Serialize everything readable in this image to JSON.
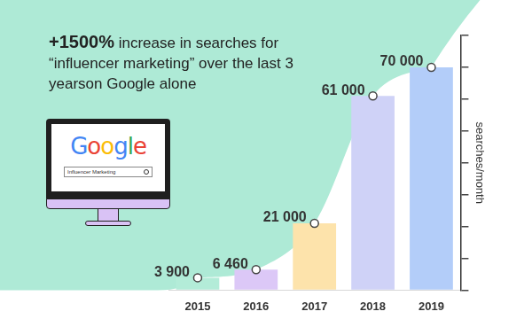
{
  "chart_data": {
    "type": "bar",
    "title": "+1500% increase in searches for “influencer marketing” over the last 3 yearson Google alone",
    "y_label": "searches/month",
    "categories": [
      "2015",
      "2016",
      "2017",
      "2018",
      "2019"
    ],
    "values": [
      3900,
      6460,
      21000,
      61000,
      70000
    ],
    "value_labels": [
      "3 900",
      "6 460",
      "21 000",
      "61 000",
      "70 000"
    ],
    "colors": [
      "#b3ecd8",
      "#dcc8f7",
      "#fde3ab",
      "#cfd2f7",
      "#b3cdf9"
    ],
    "ylim": [
      0,
      80000
    ],
    "yticks": [
      0,
      10000,
      20000,
      30000,
      40000,
      50000,
      60000,
      70000,
      80000
    ],
    "grid": false,
    "data_labels": true,
    "tick_labels": "x",
    "annotations": [
      "Google",
      "Influencer Marketing"
    ]
  }
}
